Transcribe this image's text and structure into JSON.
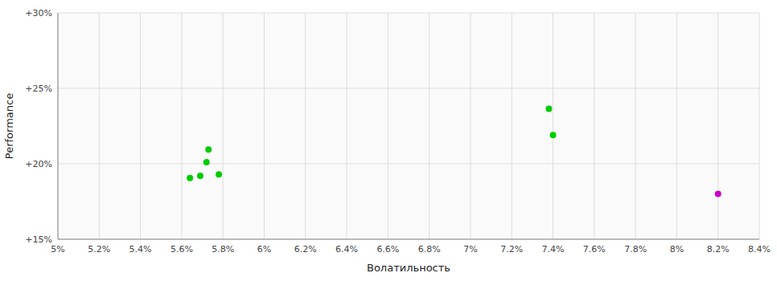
{
  "chart_data": {
    "type": "scatter",
    "xlabel": "Волатильность",
    "ylabel": "Performance",
    "xlim": [
      0.05,
      0.084
    ],
    "ylim": [
      0.15,
      0.3
    ],
    "xticks": [
      {
        "value": 0.05,
        "label": "5%"
      },
      {
        "value": 0.052,
        "label": "5.2%"
      },
      {
        "value": 0.054,
        "label": "5.4%"
      },
      {
        "value": 0.056,
        "label": "5.6%"
      },
      {
        "value": 0.058,
        "label": "5.8%"
      },
      {
        "value": 0.06,
        "label": "6%"
      },
      {
        "value": 0.062,
        "label": "6.2%"
      },
      {
        "value": 0.064,
        "label": "6.4%"
      },
      {
        "value": 0.066,
        "label": "6.6%"
      },
      {
        "value": 0.068,
        "label": "6.8%"
      },
      {
        "value": 0.07,
        "label": "7%"
      },
      {
        "value": 0.072,
        "label": "7.2%"
      },
      {
        "value": 0.074,
        "label": "7.4%"
      },
      {
        "value": 0.076,
        "label": "7.6%"
      },
      {
        "value": 0.078,
        "label": "7.8%"
      },
      {
        "value": 0.08,
        "label": "8%"
      },
      {
        "value": 0.082,
        "label": "8.2%"
      },
      {
        "value": 0.084,
        "label": "8.4%"
      }
    ],
    "yticks": [
      {
        "value": 0.15,
        "label": "+15%"
      },
      {
        "value": 0.2,
        "label": "+20%"
      },
      {
        "value": 0.25,
        "label": "+25%"
      },
      {
        "value": 0.3,
        "label": "+30%"
      }
    ],
    "grid": true,
    "series": [
      {
        "color": "#00cc00",
        "x": [
          0.0572,
          0.0564,
          0.0569,
          0.0578,
          0.0573,
          0.074,
          0.0738
        ],
        "values": [
          0.201,
          0.1905,
          0.192,
          0.193,
          0.2095,
          0.219,
          0.2365
        ]
      },
      {
        "color": "#cc00cc",
        "x": [
          0.082
        ],
        "values": [
          0.18
        ]
      }
    ]
  }
}
